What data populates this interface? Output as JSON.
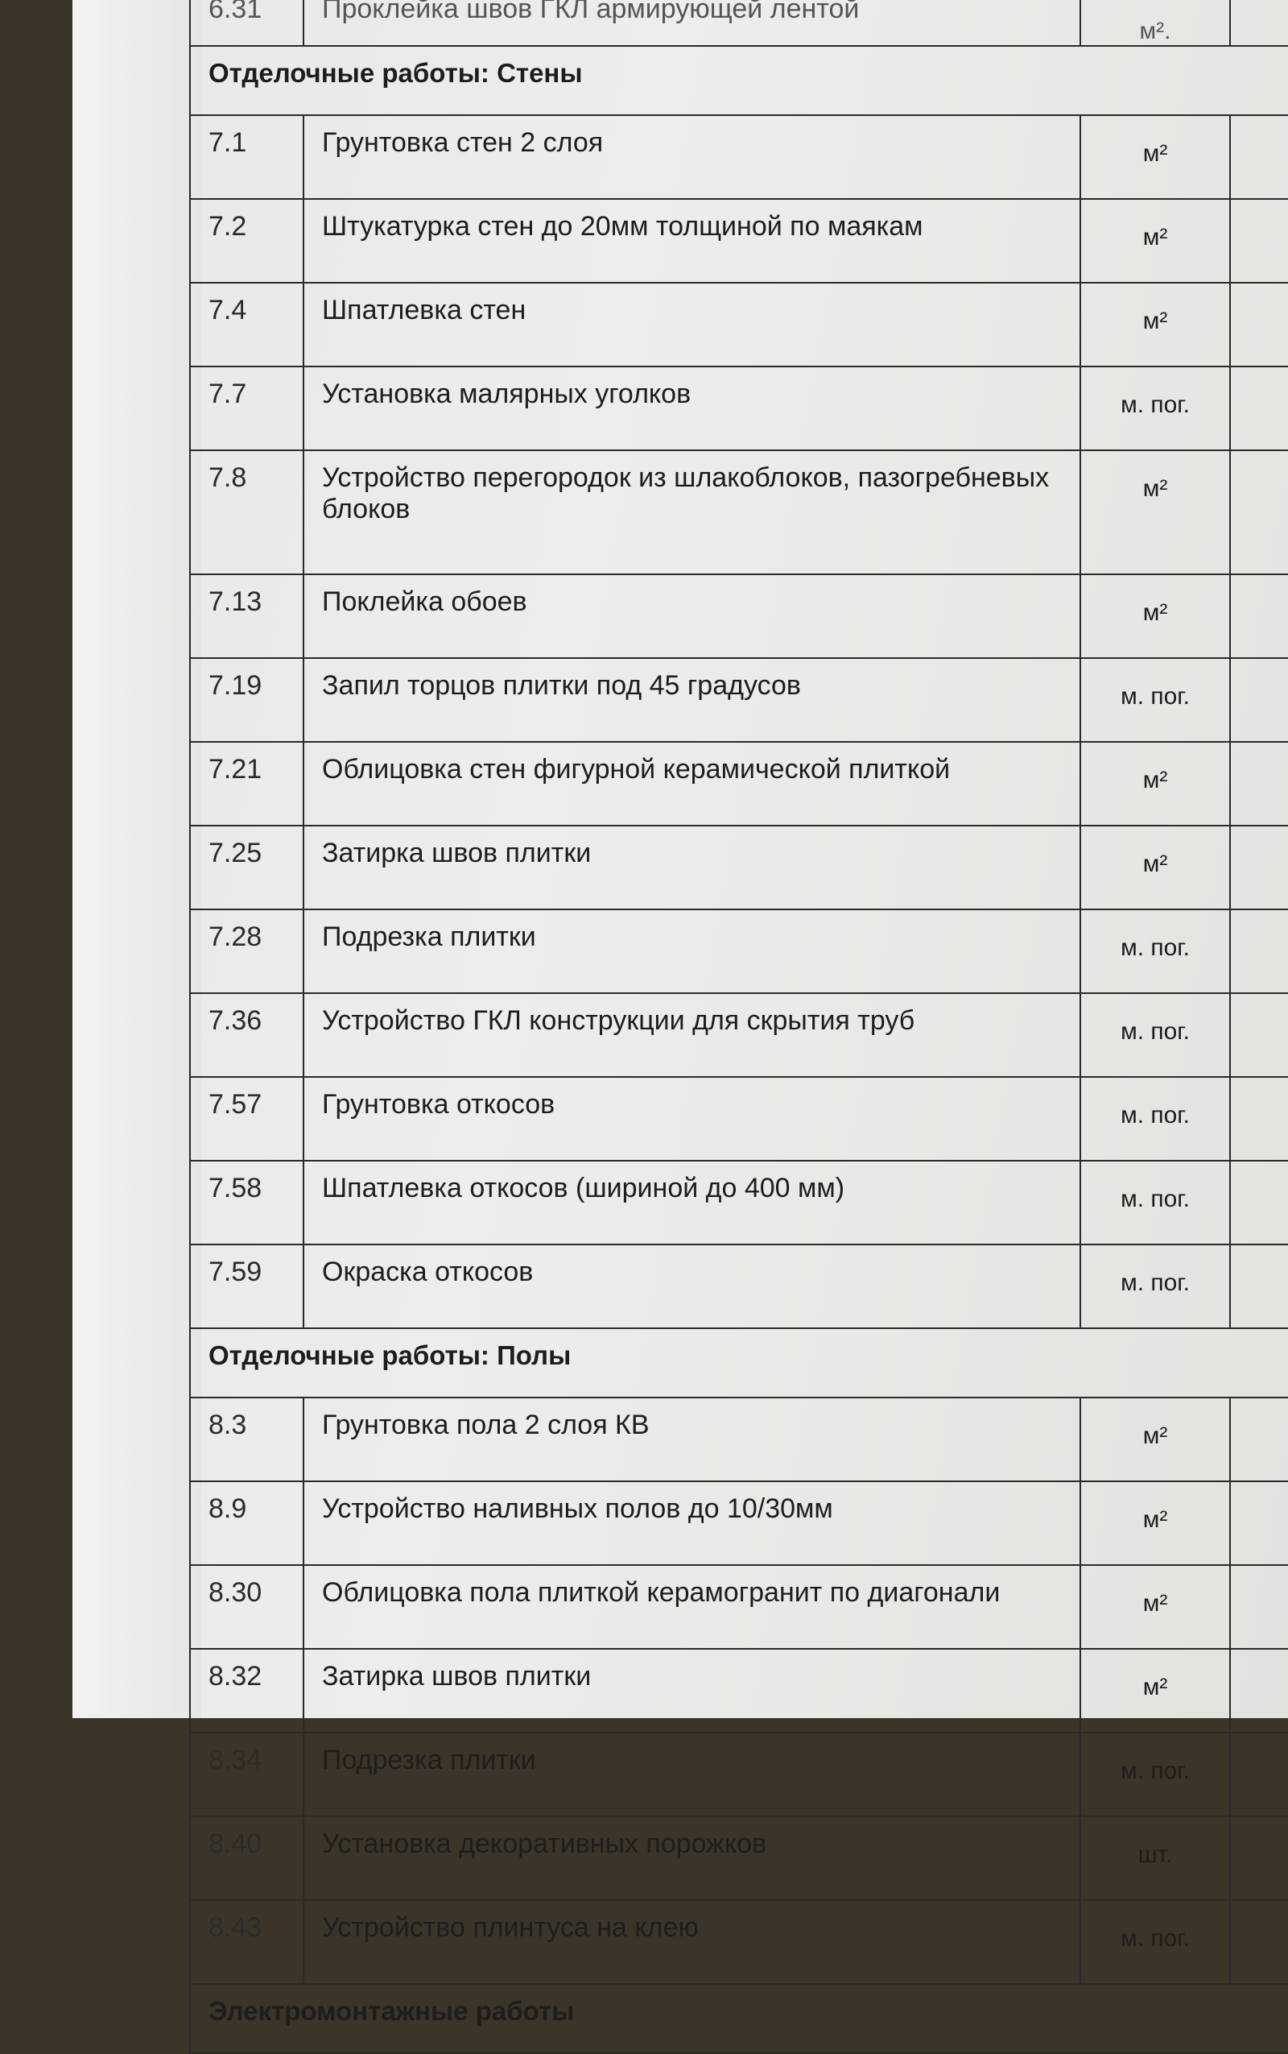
{
  "prev_row": {
    "num": "6.31",
    "name": "Проклейка швов ГКЛ армирующей лентой",
    "unit": "м²."
  },
  "sections": [
    {
      "title": "Отделочные работы: Стены",
      "rows": [
        {
          "num": "7.1",
          "name": "Грунтовка стен 2 слоя",
          "unit": "м²"
        },
        {
          "num": "7.2",
          "name": "Штукатурка стен до 20мм толщиной по маякам",
          "unit": "м²"
        },
        {
          "num": "7.4",
          "name": "Шпатлевка стен",
          "unit": "м²"
        },
        {
          "num": "7.7",
          "name": "Установка малярных уголков",
          "unit": "м. пог."
        },
        {
          "num": "7.8",
          "name": "Устройство перегородок из шлакоблоков, пазогребневых блоков",
          "unit": "м²"
        },
        {
          "num": "7.13",
          "name": "Поклейка обоев",
          "unit": "м²"
        },
        {
          "num": "7.19",
          "name": "Запил торцов плитки под 45 градусов",
          "unit": "м. пог."
        },
        {
          "num": "7.21",
          "name": "Облицовка стен фигурной керамической плиткой",
          "unit": "м²"
        },
        {
          "num": "7.25",
          "name": "Затирка швов плитки",
          "unit": "м²"
        },
        {
          "num": "7.28",
          "name": "Подрезка плитки",
          "unit": "м. пог."
        },
        {
          "num": "7.36",
          "name": "Устройство ГКЛ конструкции для скрытия труб",
          "unit": "м. пог."
        },
        {
          "num": "7.57",
          "name": "Грунтовка откосов",
          "unit": "м. пог."
        },
        {
          "num": "7.58",
          "name": "Шпатлевка откосов (шириной до 400 мм)",
          "unit": "м. пог."
        },
        {
          "num": "7.59",
          "name": "Окраска откосов",
          "unit": "м. пог."
        }
      ]
    },
    {
      "title": "Отделочные работы: Полы",
      "rows": [
        {
          "num": "8.3",
          "name": "Грунтовка пола 2 слоя КВ",
          "unit": "м²"
        },
        {
          "num": "8.9",
          "name": "Устройство наливных полов до 10/30мм",
          "unit": "м²"
        },
        {
          "num": "8.30",
          "name": "Облицовка пола плиткой керамогранит по диагонали",
          "unit": "м²"
        },
        {
          "num": "8.32",
          "name": "Затирка швов плитки",
          "unit": "м²"
        },
        {
          "num": "8.34",
          "name": "Подрезка плитки",
          "unit": "м. пог."
        },
        {
          "num": "8.40",
          "name": "Установка декоративных порожков",
          "unit": "шт."
        },
        {
          "num": "8.43",
          "name": "Устройство плинтуса на клею",
          "unit": "м. пог."
        }
      ]
    },
    {
      "title": "Электромонтажные работы",
      "rows": []
    }
  ]
}
